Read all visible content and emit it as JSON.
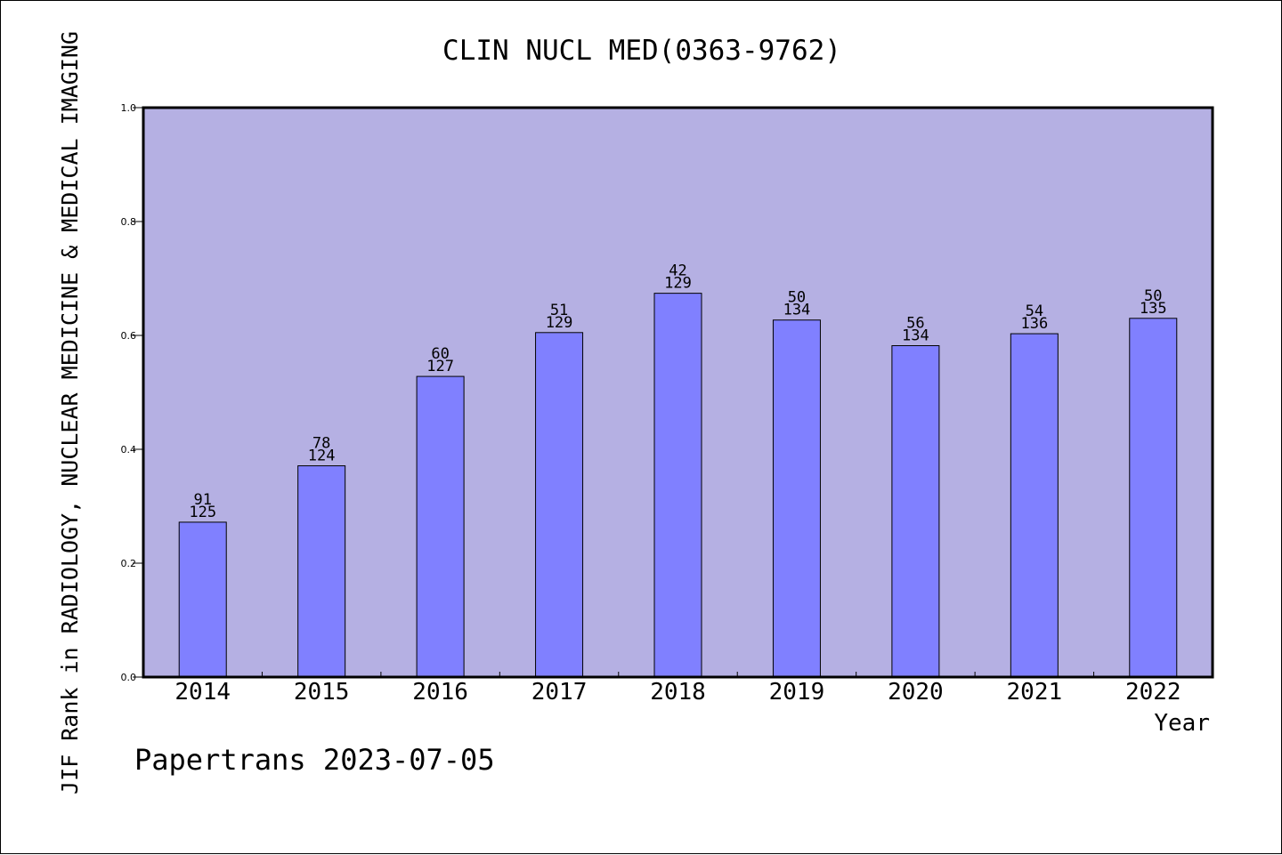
{
  "chart_data": {
    "type": "bar",
    "title": "CLIN NUCL MED(0363-9762)",
    "xlabel": "Year",
    "ylabel": "JIF Rank in RADIOLOGY, NUCLEAR MEDICINE & MEDICAL IMAGING",
    "footer": "Papertrans 2023-07-05",
    "categories": [
      "2014",
      "2015",
      "2016",
      "2017",
      "2018",
      "2019",
      "2020",
      "2021",
      "2022"
    ],
    "values": [
      0.272,
      0.371,
      0.528,
      0.605,
      0.674,
      0.627,
      0.582,
      0.603,
      0.63
    ],
    "rank_labels": [
      "91",
      "78",
      "60",
      "51",
      "42",
      "50",
      "56",
      "54",
      "50"
    ],
    "total_labels": [
      "125",
      "124",
      "127",
      "129",
      "129",
      "134",
      "134",
      "136",
      "135"
    ],
    "ylim": [
      0,
      1.0
    ],
    "yticks": [
      "0.0",
      "0.2",
      "0.4",
      "0.6",
      "0.8",
      "1.0"
    ],
    "grid": false,
    "colors": {
      "plot_background": "#b5b0e3",
      "bar_fill": "#8080ff",
      "bar_stroke": "#000000",
      "text": "#000000"
    }
  }
}
